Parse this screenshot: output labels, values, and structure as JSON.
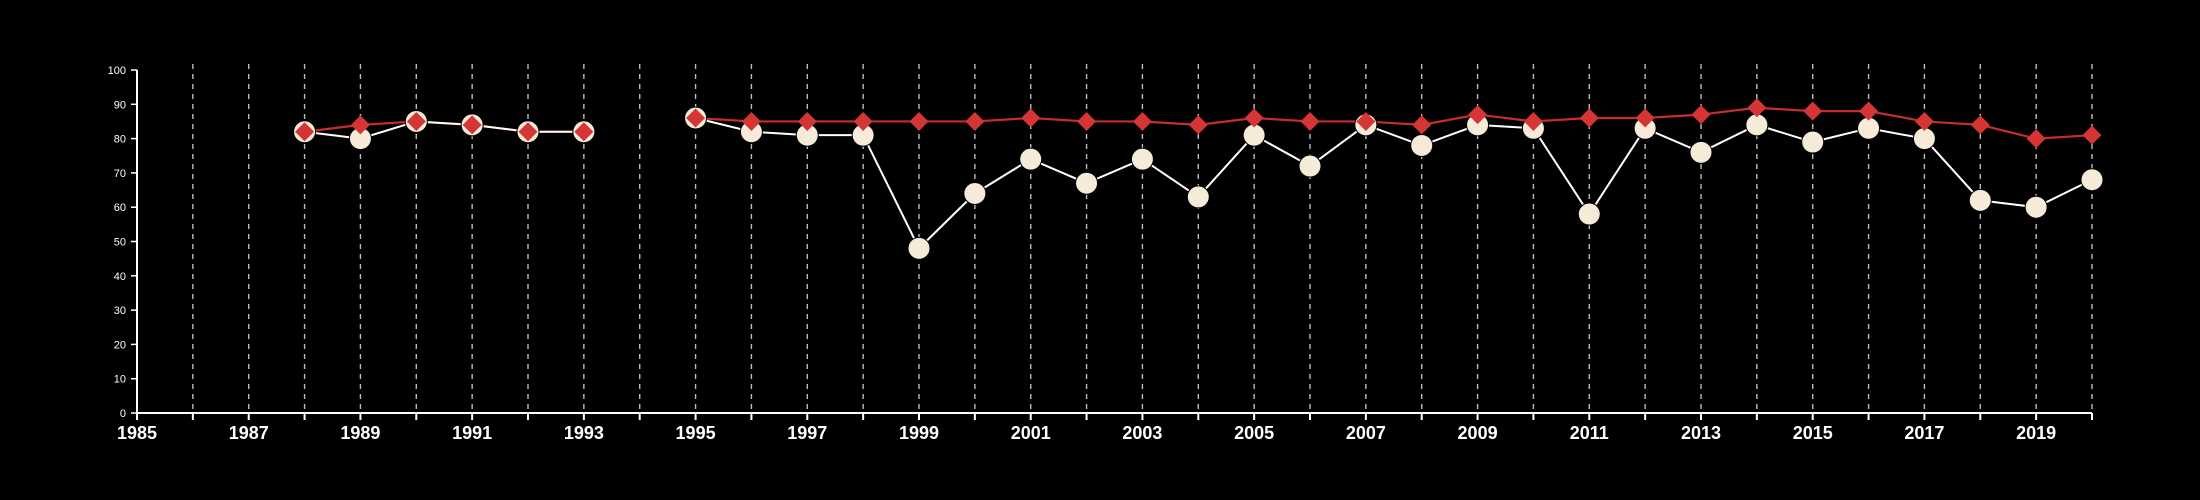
{
  "colors": {
    "background": "#000000",
    "axis": "#ffffff",
    "grid": "#bdbdbd",
    "series_white": "#f6ead8",
    "series_white_line": "#ffffff",
    "series_red": "#d53535",
    "series_red_line": "#c62d2d"
  },
  "chart_data": {
    "type": "line",
    "title": "",
    "xlabel": "",
    "ylabel": "",
    "xlim": [
      1985,
      2020
    ],
    "ylim": [
      0,
      100
    ],
    "grid": {
      "vertical": true,
      "horizontal": false,
      "style": "dashed"
    },
    "legend": "none",
    "x_ticks": [
      1985,
      1986,
      1987,
      1988,
      1989,
      1990,
      1991,
      1992,
      1993,
      1994,
      1995,
      1996,
      1997,
      1998,
      1999,
      2000,
      2001,
      2002,
      2003,
      2004,
      2005,
      2006,
      2007,
      2008,
      2009,
      2010,
      2011,
      2012,
      2013,
      2014,
      2015,
      2016,
      2017,
      2018,
      2019,
      2020
    ],
    "x_tick_labels": [
      "1985",
      "1987",
      "1989",
      "1991",
      "1993",
      "1995",
      "1997",
      "1999",
      "2001",
      "2003",
      "2005",
      "2007",
      "2009",
      "2011",
      "2013",
      "2015",
      "2017",
      "2019"
    ],
    "y_ticks": [
      0,
      10,
      20,
      30,
      40,
      50,
      60,
      70,
      80,
      90,
      100
    ],
    "y_tick_labels": [
      "0",
      "10",
      "20",
      "30",
      "40",
      "50",
      "60",
      "70",
      "80",
      "90",
      "100"
    ],
    "series": [
      {
        "marker": "circle",
        "color": "#f6ead8",
        "segments": [
          {
            "x": [
              1988,
              1989,
              1990,
              1991,
              1992,
              1993
            ],
            "y": [
              82,
              80,
              85,
              84,
              82,
              82
            ]
          },
          {
            "x": [
              1995,
              1996,
              1997,
              1998,
              1999,
              2000,
              2001,
              2002,
              2003,
              2004,
              2005,
              2006,
              2007,
              2008,
              2009,
              2010,
              2011,
              2012,
              2013,
              2014,
              2015,
              2016,
              2017,
              2018,
              2019,
              2020
            ],
            "y": [
              86,
              82,
              81,
              81,
              48,
              64,
              74,
              67,
              74,
              63,
              81,
              72,
              84,
              78,
              84,
              83,
              58,
              83,
              76,
              84,
              79,
              83,
              80,
              62,
              60,
              68
            ]
          }
        ]
      },
      {
        "marker": "diamond",
        "color": "#d53535",
        "segments": [
          {
            "x": [
              1988,
              1989,
              1990,
              1991,
              1992,
              1993
            ],
            "y": [
              82,
              84,
              85,
              84,
              82,
              82
            ]
          },
          {
            "x": [
              1995,
              1996,
              1997,
              1998,
              1999,
              2000,
              2001,
              2002,
              2003,
              2004,
              2005,
              2006,
              2007,
              2008,
              2009,
              2010,
              2011,
              2012,
              2013,
              2014,
              2015,
              2016,
              2017,
              2018,
              2019,
              2020
            ],
            "y": [
              86,
              85,
              85,
              85,
              85,
              85,
              86,
              85,
              85,
              84,
              86,
              85,
              85,
              84,
              87,
              85,
              86,
              86,
              87,
              89,
              88,
              88,
              85,
              84,
              80,
              81
            ]
          }
        ]
      }
    ]
  }
}
